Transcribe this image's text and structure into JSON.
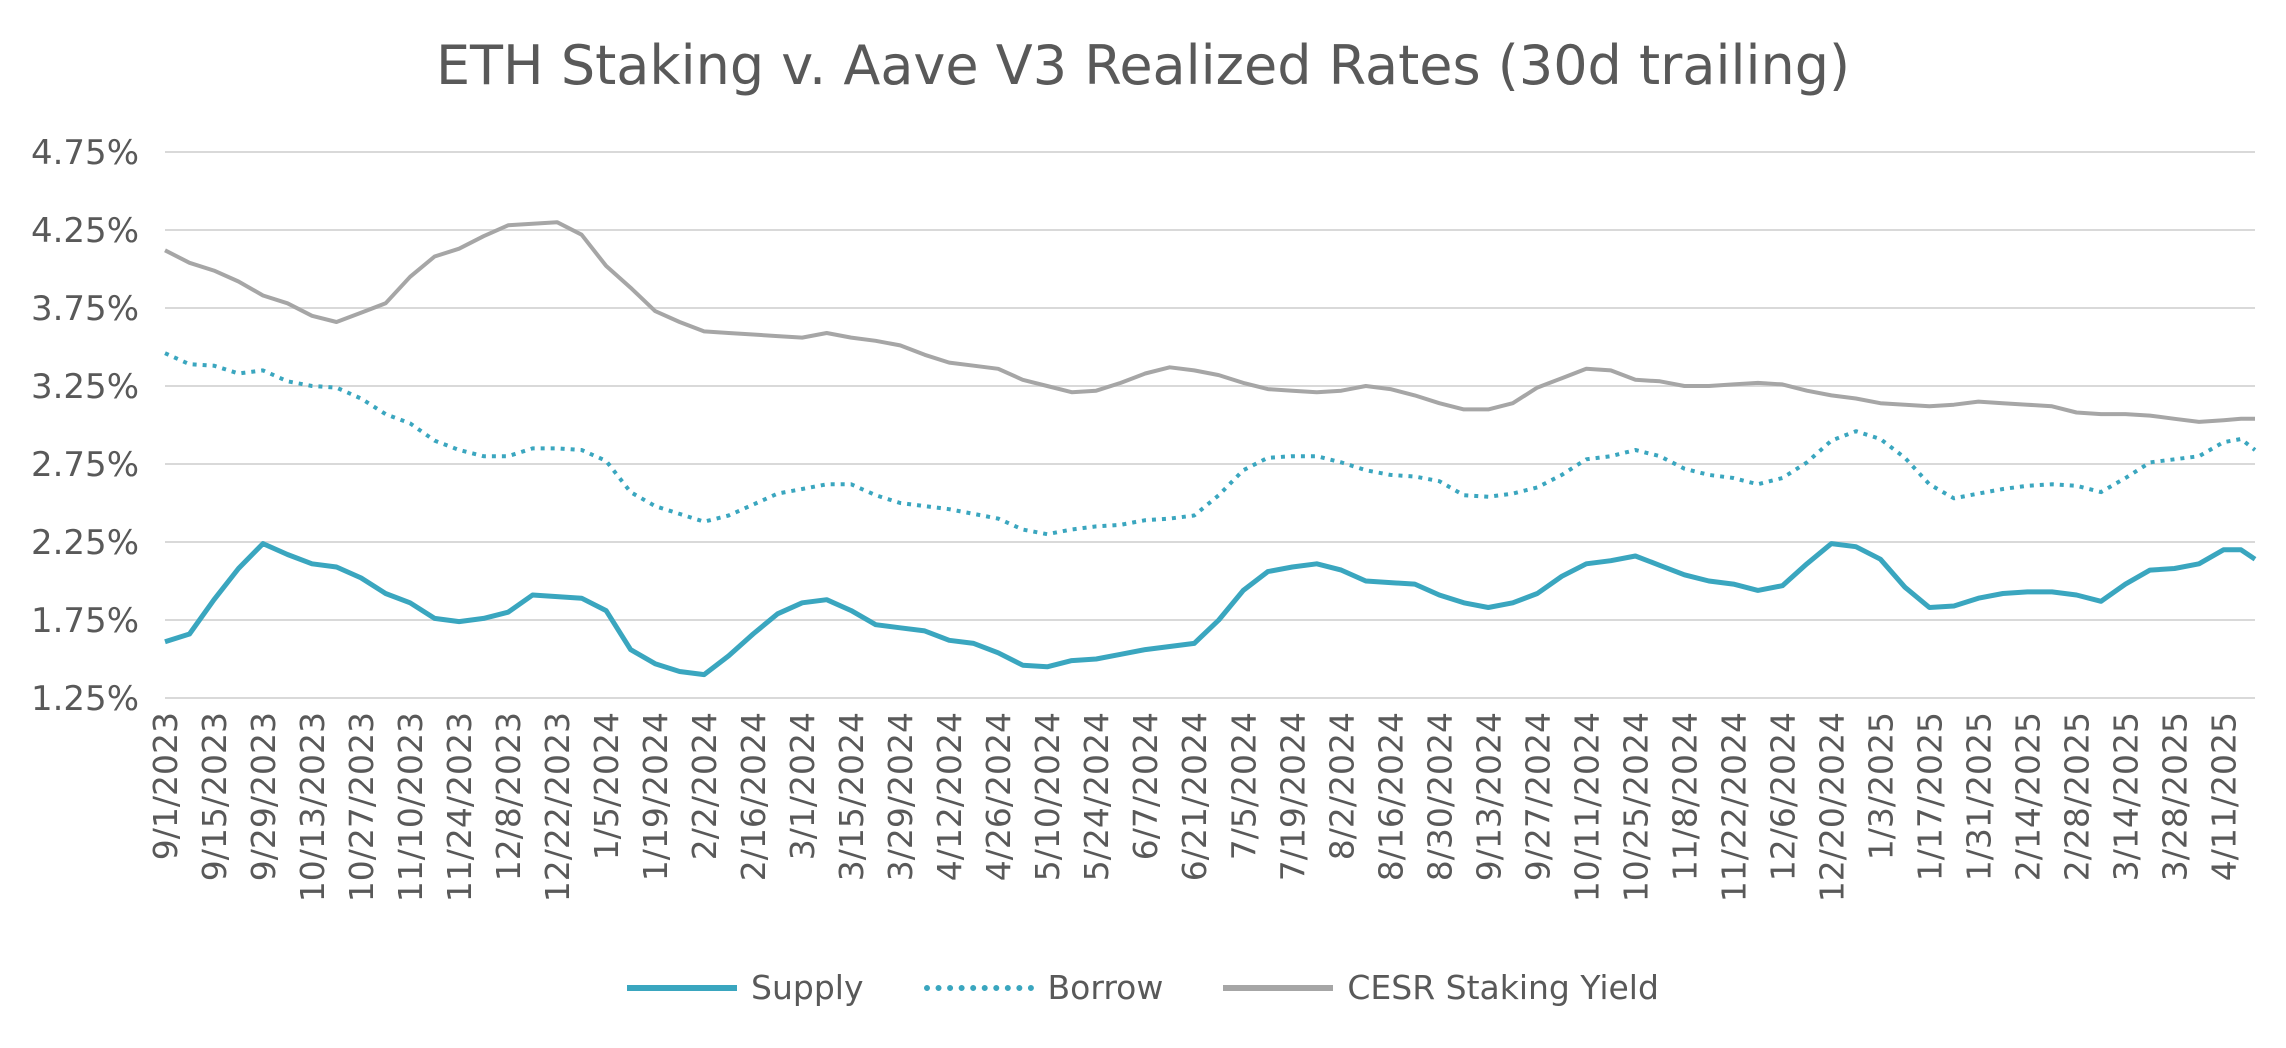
{
  "title": "ETH Staking v. Aave V3 Realized Rates (30d trailing)",
  "colors": {
    "supply": "#3aa6bf",
    "borrow": "#3aa6bf",
    "cesr": "#a6a6a6",
    "grid": "#d9d9d9",
    "text": "#595959"
  },
  "chart_data": {
    "type": "line",
    "title": "ETH Staking v. Aave V3 Realized Rates (30d trailing)",
    "y_unit": "%",
    "ylim": [
      1.25,
      4.75
    ],
    "y_ticks": [
      "1.25%",
      "1.75%",
      "2.25%",
      "2.75%",
      "3.25%",
      "3.75%",
      "4.25%",
      "4.75%"
    ],
    "x_range": [
      "2023-09-01",
      "2025-04-20"
    ],
    "x_ticks": [
      "9/1/2023",
      "9/15/2023",
      "9/29/2023",
      "10/13/2023",
      "10/27/2023",
      "11/10/2023",
      "11/24/2023",
      "12/8/2023",
      "12/22/2023",
      "1/5/2024",
      "1/19/2024",
      "2/2/2024",
      "2/16/2024",
      "3/1/2024",
      "3/15/2024",
      "3/29/2024",
      "4/12/2024",
      "4/26/2024",
      "5/10/2024",
      "5/24/2024",
      "6/7/2024",
      "6/21/2024",
      "7/5/2024",
      "7/19/2024",
      "8/2/2024",
      "8/16/2024",
      "8/30/2024",
      "9/13/2024",
      "9/27/2024",
      "10/11/2024",
      "10/25/2024",
      "11/8/2024",
      "11/22/2024",
      "12/6/2024",
      "12/20/2024",
      "1/3/2025",
      "1/17/2025",
      "1/31/2025",
      "2/14/2025",
      "2/28/2025",
      "3/14/2025",
      "3/28/2025",
      "4/11/2025"
    ],
    "grid": true,
    "legend": "bottom",
    "series": [
      {
        "name": "Supply",
        "style": "solid",
        "color": "#3aa6bf",
        "points": [
          [
            "2023-09-01",
            1.61
          ],
          [
            "2023-09-08",
            1.66
          ],
          [
            "2023-09-15",
            1.88
          ],
          [
            "2023-09-22",
            2.08
          ],
          [
            "2023-09-29",
            2.24
          ],
          [
            "2023-10-06",
            2.17
          ],
          [
            "2023-10-13",
            2.11
          ],
          [
            "2023-10-20",
            2.09
          ],
          [
            "2023-10-27",
            2.02
          ],
          [
            "2023-11-03",
            1.92
          ],
          [
            "2023-11-10",
            1.86
          ],
          [
            "2023-11-17",
            1.76
          ],
          [
            "2023-11-24",
            1.74
          ],
          [
            "2023-12-01",
            1.76
          ],
          [
            "2023-12-08",
            1.8
          ],
          [
            "2023-12-15",
            1.91
          ],
          [
            "2023-12-22",
            1.9
          ],
          [
            "2023-12-29",
            1.89
          ],
          [
            "2024-01-05",
            1.81
          ],
          [
            "2024-01-12",
            1.56
          ],
          [
            "2024-01-19",
            1.47
          ],
          [
            "2024-01-26",
            1.42
          ],
          [
            "2024-02-02",
            1.4
          ],
          [
            "2024-02-09",
            1.52
          ],
          [
            "2024-02-16",
            1.66
          ],
          [
            "2024-02-23",
            1.79
          ],
          [
            "2024-03-01",
            1.86
          ],
          [
            "2024-03-08",
            1.88
          ],
          [
            "2024-03-15",
            1.81
          ],
          [
            "2024-03-22",
            1.72
          ],
          [
            "2024-03-29",
            1.7
          ],
          [
            "2024-04-05",
            1.68
          ],
          [
            "2024-04-12",
            1.62
          ],
          [
            "2024-04-19",
            1.6
          ],
          [
            "2024-04-26",
            1.54
          ],
          [
            "2024-05-03",
            1.46
          ],
          [
            "2024-05-10",
            1.45
          ],
          [
            "2024-05-17",
            1.49
          ],
          [
            "2024-05-24",
            1.5
          ],
          [
            "2024-05-31",
            1.53
          ],
          [
            "2024-06-07",
            1.56
          ],
          [
            "2024-06-14",
            1.58
          ],
          [
            "2024-06-21",
            1.6
          ],
          [
            "2024-06-28",
            1.75
          ],
          [
            "2024-07-05",
            1.94
          ],
          [
            "2024-07-12",
            2.06
          ],
          [
            "2024-07-19",
            2.09
          ],
          [
            "2024-07-26",
            2.11
          ],
          [
            "2024-08-02",
            2.07
          ],
          [
            "2024-08-09",
            2.0
          ],
          [
            "2024-08-16",
            1.99
          ],
          [
            "2024-08-23",
            1.98
          ],
          [
            "2024-08-30",
            1.91
          ],
          [
            "2024-09-06",
            1.86
          ],
          [
            "2024-09-13",
            1.83
          ],
          [
            "2024-09-20",
            1.86
          ],
          [
            "2024-09-27",
            1.92
          ],
          [
            "2024-10-04",
            2.03
          ],
          [
            "2024-10-11",
            2.11
          ],
          [
            "2024-10-18",
            2.13
          ],
          [
            "2024-10-25",
            2.16
          ],
          [
            "2024-11-01",
            2.1
          ],
          [
            "2024-11-08",
            2.04
          ],
          [
            "2024-11-15",
            2.0
          ],
          [
            "2024-11-22",
            1.98
          ],
          [
            "2024-11-29",
            1.94
          ],
          [
            "2024-12-06",
            1.97
          ],
          [
            "2024-12-13",
            2.11
          ],
          [
            "2024-12-20",
            2.24
          ],
          [
            "2024-12-27",
            2.22
          ],
          [
            "2025-01-03",
            2.14
          ],
          [
            "2025-01-10",
            1.96
          ],
          [
            "2025-01-17",
            1.83
          ],
          [
            "2025-01-24",
            1.84
          ],
          [
            "2025-01-31",
            1.89
          ],
          [
            "2025-02-07",
            1.92
          ],
          [
            "2025-02-14",
            1.93
          ],
          [
            "2025-02-21",
            1.93
          ],
          [
            "2025-02-28",
            1.91
          ],
          [
            "2025-03-07",
            1.87
          ],
          [
            "2025-03-14",
            1.98
          ],
          [
            "2025-03-21",
            2.07
          ],
          [
            "2025-03-28",
            2.08
          ],
          [
            "2025-04-04",
            2.11
          ],
          [
            "2025-04-11",
            2.2
          ],
          [
            "2025-04-16",
            2.2
          ],
          [
            "2025-04-20",
            2.14
          ]
        ]
      },
      {
        "name": "Borrow",
        "style": "dotted",
        "color": "#3aa6bf",
        "points": [
          [
            "2023-09-01",
            3.46
          ],
          [
            "2023-09-08",
            3.39
          ],
          [
            "2023-09-15",
            3.38
          ],
          [
            "2023-09-22",
            3.33
          ],
          [
            "2023-09-29",
            3.35
          ],
          [
            "2023-10-06",
            3.28
          ],
          [
            "2023-10-13",
            3.25
          ],
          [
            "2023-10-20",
            3.24
          ],
          [
            "2023-10-27",
            3.17
          ],
          [
            "2023-11-03",
            3.07
          ],
          [
            "2023-11-10",
            3.01
          ],
          [
            "2023-11-17",
            2.9
          ],
          [
            "2023-11-24",
            2.84
          ],
          [
            "2023-12-01",
            2.8
          ],
          [
            "2023-12-08",
            2.8
          ],
          [
            "2023-12-15",
            2.85
          ],
          [
            "2023-12-22",
            2.85
          ],
          [
            "2023-12-29",
            2.84
          ],
          [
            "2024-01-05",
            2.77
          ],
          [
            "2024-01-12",
            2.57
          ],
          [
            "2024-01-19",
            2.48
          ],
          [
            "2024-01-26",
            2.43
          ],
          [
            "2024-02-02",
            2.38
          ],
          [
            "2024-02-09",
            2.42
          ],
          [
            "2024-02-16",
            2.49
          ],
          [
            "2024-02-23",
            2.56
          ],
          [
            "2024-03-01",
            2.59
          ],
          [
            "2024-03-08",
            2.62
          ],
          [
            "2024-03-15",
            2.62
          ],
          [
            "2024-03-22",
            2.55
          ],
          [
            "2024-03-29",
            2.5
          ],
          [
            "2024-04-05",
            2.48
          ],
          [
            "2024-04-12",
            2.46
          ],
          [
            "2024-04-19",
            2.43
          ],
          [
            "2024-04-26",
            2.4
          ],
          [
            "2024-05-03",
            2.33
          ],
          [
            "2024-05-10",
            2.3
          ],
          [
            "2024-05-17",
            2.33
          ],
          [
            "2024-05-24",
            2.35
          ],
          [
            "2024-05-31",
            2.36
          ],
          [
            "2024-06-07",
            2.39
          ],
          [
            "2024-06-14",
            2.4
          ],
          [
            "2024-06-21",
            2.42
          ],
          [
            "2024-06-28",
            2.55
          ],
          [
            "2024-07-05",
            2.71
          ],
          [
            "2024-07-12",
            2.79
          ],
          [
            "2024-07-19",
            2.8
          ],
          [
            "2024-07-26",
            2.8
          ],
          [
            "2024-08-02",
            2.76
          ],
          [
            "2024-08-09",
            2.71
          ],
          [
            "2024-08-16",
            2.68
          ],
          [
            "2024-08-23",
            2.67
          ],
          [
            "2024-08-30",
            2.64
          ],
          [
            "2024-09-06",
            2.55
          ],
          [
            "2024-09-13",
            2.54
          ],
          [
            "2024-09-20",
            2.56
          ],
          [
            "2024-09-27",
            2.6
          ],
          [
            "2024-10-04",
            2.68
          ],
          [
            "2024-10-11",
            2.78
          ],
          [
            "2024-10-18",
            2.8
          ],
          [
            "2024-10-25",
            2.84
          ],
          [
            "2024-11-01",
            2.8
          ],
          [
            "2024-11-08",
            2.72
          ],
          [
            "2024-11-15",
            2.68
          ],
          [
            "2024-11-22",
            2.66
          ],
          [
            "2024-11-29",
            2.62
          ],
          [
            "2024-12-06",
            2.66
          ],
          [
            "2024-12-13",
            2.76
          ],
          [
            "2024-12-20",
            2.9
          ],
          [
            "2024-12-27",
            2.96
          ],
          [
            "2025-01-03",
            2.91
          ],
          [
            "2025-01-10",
            2.79
          ],
          [
            "2025-01-17",
            2.62
          ],
          [
            "2025-01-24",
            2.53
          ],
          [
            "2025-01-31",
            2.56
          ],
          [
            "2025-02-07",
            2.59
          ],
          [
            "2025-02-14",
            2.61
          ],
          [
            "2025-02-21",
            2.62
          ],
          [
            "2025-02-28",
            2.61
          ],
          [
            "2025-03-07",
            2.57
          ],
          [
            "2025-03-14",
            2.66
          ],
          [
            "2025-03-21",
            2.76
          ],
          [
            "2025-03-28",
            2.78
          ],
          [
            "2025-04-04",
            2.8
          ],
          [
            "2025-04-11",
            2.89
          ],
          [
            "2025-04-16",
            2.91
          ],
          [
            "2025-04-20",
            2.84
          ]
        ]
      },
      {
        "name": "CESR Staking Yield",
        "style": "solid",
        "color": "#a6a6a6",
        "points": [
          [
            "2023-09-01",
            4.12
          ],
          [
            "2023-09-08",
            4.04
          ],
          [
            "2023-09-15",
            3.99
          ],
          [
            "2023-09-22",
            3.92
          ],
          [
            "2023-09-29",
            3.83
          ],
          [
            "2023-10-06",
            3.78
          ],
          [
            "2023-10-13",
            3.7
          ],
          [
            "2023-10-20",
            3.66
          ],
          [
            "2023-10-27",
            3.72
          ],
          [
            "2023-11-03",
            3.78
          ],
          [
            "2023-11-10",
            3.95
          ],
          [
            "2023-11-17",
            4.08
          ],
          [
            "2023-11-24",
            4.13
          ],
          [
            "2023-12-01",
            4.21
          ],
          [
            "2023-12-08",
            4.28
          ],
          [
            "2023-12-15",
            4.29
          ],
          [
            "2023-12-22",
            4.3
          ],
          [
            "2023-12-29",
            4.22
          ],
          [
            "2024-01-05",
            4.02
          ],
          [
            "2024-01-12",
            3.88
          ],
          [
            "2024-01-19",
            3.73
          ],
          [
            "2024-01-26",
            3.66
          ],
          [
            "2024-02-02",
            3.6
          ],
          [
            "2024-02-09",
            3.59
          ],
          [
            "2024-02-16",
            3.58
          ],
          [
            "2024-02-23",
            3.57
          ],
          [
            "2024-03-01",
            3.56
          ],
          [
            "2024-03-08",
            3.59
          ],
          [
            "2024-03-15",
            3.56
          ],
          [
            "2024-03-22",
            3.54
          ],
          [
            "2024-03-29",
            3.51
          ],
          [
            "2024-04-05",
            3.45
          ],
          [
            "2024-04-12",
            3.4
          ],
          [
            "2024-04-19",
            3.38
          ],
          [
            "2024-04-26",
            3.36
          ],
          [
            "2024-05-03",
            3.29
          ],
          [
            "2024-05-10",
            3.25
          ],
          [
            "2024-05-17",
            3.21
          ],
          [
            "2024-05-24",
            3.22
          ],
          [
            "2024-05-31",
            3.27
          ],
          [
            "2024-06-07",
            3.33
          ],
          [
            "2024-06-14",
            3.37
          ],
          [
            "2024-06-21",
            3.35
          ],
          [
            "2024-06-28",
            3.32
          ],
          [
            "2024-07-05",
            3.27
          ],
          [
            "2024-07-12",
            3.23
          ],
          [
            "2024-07-19",
            3.22
          ],
          [
            "2024-07-26",
            3.21
          ],
          [
            "2024-08-02",
            3.22
          ],
          [
            "2024-08-09",
            3.25
          ],
          [
            "2024-08-16",
            3.23
          ],
          [
            "2024-08-23",
            3.19
          ],
          [
            "2024-08-30",
            3.14
          ],
          [
            "2024-09-06",
            3.1
          ],
          [
            "2024-09-13",
            3.1
          ],
          [
            "2024-09-20",
            3.14
          ],
          [
            "2024-09-27",
            3.24
          ],
          [
            "2024-10-04",
            3.3
          ],
          [
            "2024-10-11",
            3.36
          ],
          [
            "2024-10-18",
            3.35
          ],
          [
            "2024-10-25",
            3.29
          ],
          [
            "2024-11-01",
            3.28
          ],
          [
            "2024-11-08",
            3.25
          ],
          [
            "2024-11-15",
            3.25
          ],
          [
            "2024-11-22",
            3.26
          ],
          [
            "2024-11-29",
            3.27
          ],
          [
            "2024-12-06",
            3.26
          ],
          [
            "2024-12-13",
            3.22
          ],
          [
            "2024-12-20",
            3.19
          ],
          [
            "2024-12-27",
            3.17
          ],
          [
            "2025-01-03",
            3.14
          ],
          [
            "2025-01-10",
            3.13
          ],
          [
            "2025-01-17",
            3.12
          ],
          [
            "2025-01-24",
            3.13
          ],
          [
            "2025-01-31",
            3.15
          ],
          [
            "2025-02-07",
            3.14
          ],
          [
            "2025-02-14",
            3.13
          ],
          [
            "2025-02-21",
            3.12
          ],
          [
            "2025-02-28",
            3.08
          ],
          [
            "2025-03-07",
            3.07
          ],
          [
            "2025-03-14",
            3.07
          ],
          [
            "2025-03-21",
            3.06
          ],
          [
            "2025-03-28",
            3.04
          ],
          [
            "2025-04-04",
            3.02
          ],
          [
            "2025-04-11",
            3.03
          ],
          [
            "2025-04-16",
            3.04
          ],
          [
            "2025-04-20",
            3.04
          ]
        ]
      }
    ]
  }
}
